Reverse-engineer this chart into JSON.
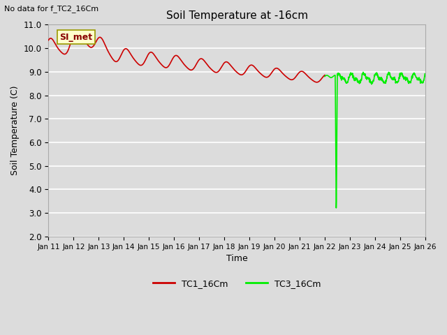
{
  "title": "Soil Temperature at -16cm",
  "xlabel": "Time",
  "ylabel": "Soil Temperature (C)",
  "ylim": [
    2.0,
    11.0
  ],
  "yticks": [
    2.0,
    3.0,
    4.0,
    5.0,
    6.0,
    7.0,
    8.0,
    9.0,
    10.0,
    11.0
  ],
  "bg_color": "#dcdcdc",
  "plot_bg_color": "#dcdcdc",
  "grid_color": "#c8c8c8",
  "tc1_color": "#cc0000",
  "tc3_color": "#00ee00",
  "no_data_text": "No data for f_TC2_16Cm",
  "si_met_label": "SI_met",
  "legend_entries": [
    "TC1_16Cm",
    "TC3_16Cm"
  ],
  "x_tick_labels": [
    "Jan 11",
    "Jan 12",
    "Jan 13",
    "Jan 14",
    "Jan 15",
    "Jan 16",
    "Jan 17",
    "Jan 18",
    "Jan 19",
    "Jan 20",
    "Jan 21",
    "Jan 22",
    "Jan 23",
    "Jan 24",
    "Jan 25",
    "Jan 26"
  ]
}
